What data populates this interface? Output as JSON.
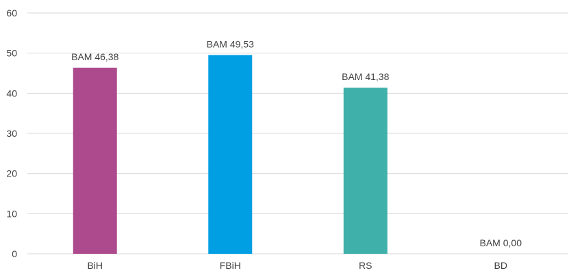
{
  "chart_data": {
    "type": "bar",
    "title": "",
    "xlabel": "",
    "ylabel": "",
    "categories": [
      "BiH",
      "FBiH",
      "RS",
      "BD"
    ],
    "values": [
      46.38,
      49.53,
      41.38,
      0.0
    ],
    "data_labels": [
      "BAM 46,38",
      "BAM 49,53",
      "BAM 41,38",
      "BAM 0,00"
    ],
    "colors": [
      "#AD4A8E",
      "#009FE3",
      "#40B0AA",
      "#AD4A8E"
    ],
    "ylim": [
      0,
      60
    ],
    "yticks": [
      0,
      10,
      20,
      30,
      40,
      50,
      60
    ],
    "grid": true,
    "legend": "none"
  }
}
